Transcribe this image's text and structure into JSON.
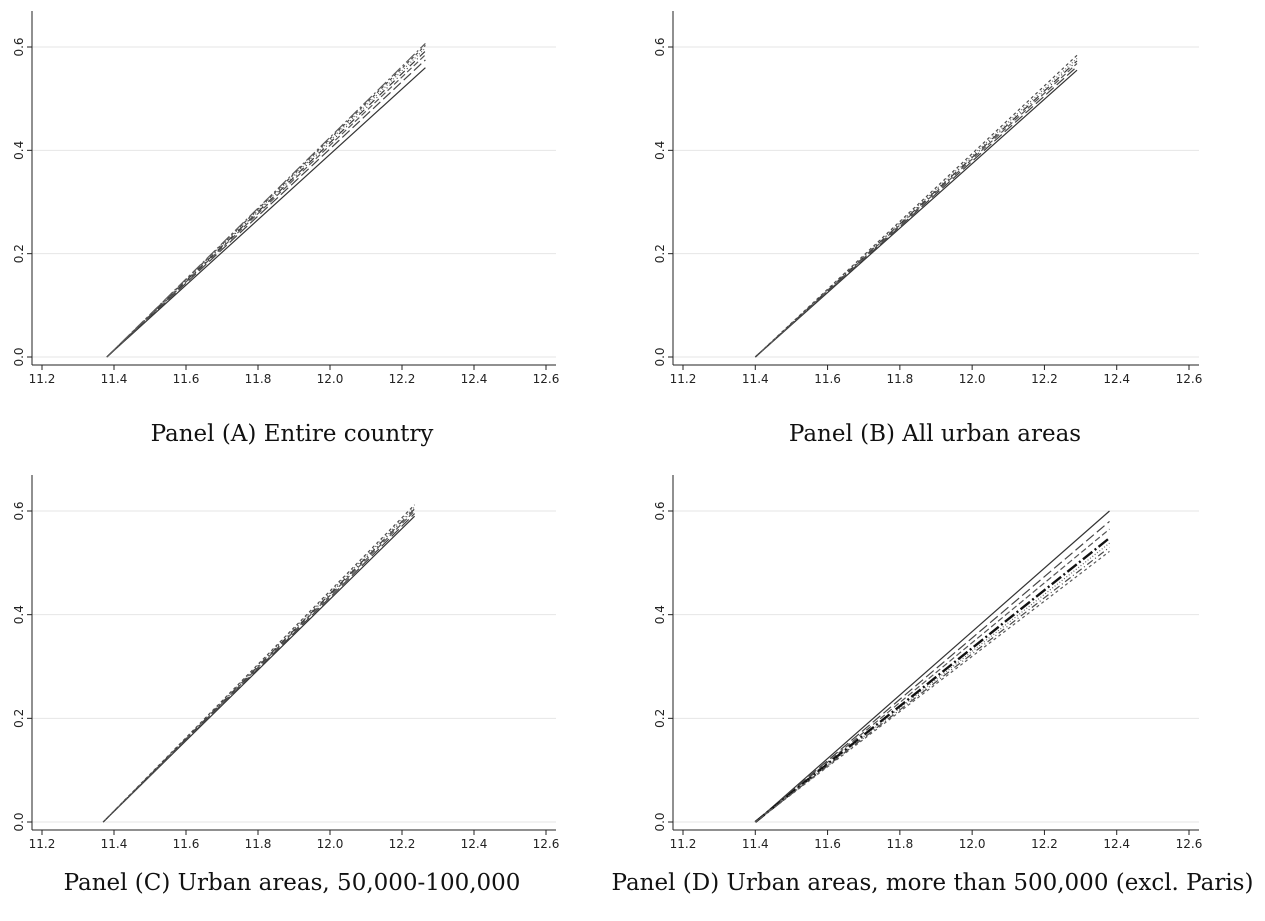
{
  "chart_data": [
    {
      "type": "line",
      "caption": "Panel (A) Entire country",
      "xlim": [
        11.2,
        12.6
      ],
      "ylim": [
        0.0,
        0.6
      ],
      "xticks": [
        "11.2",
        "11.4",
        "11.6",
        "11.8",
        "12.0",
        "12.2",
        "12.4",
        "12.6"
      ],
      "yticks": [
        "0.0",
        "0.2",
        "0.4",
        "0.6"
      ],
      "grid": true,
      "series": [
        {
          "x": [
            11.38,
            12.265
          ],
          "y": [
            0.0,
            0.56
          ],
          "style": "solid"
        },
        {
          "x": [
            11.38,
            12.265
          ],
          "y": [
            0.0,
            0.575
          ],
          "style": "longdash"
        },
        {
          "x": [
            11.38,
            12.265
          ],
          "y": [
            0.0,
            0.585
          ],
          "style": "dash"
        },
        {
          "x": [
            11.38,
            12.265
          ],
          "y": [
            0.0,
            0.592
          ],
          "style": "dashdot"
        },
        {
          "x": [
            11.38,
            12.265
          ],
          "y": [
            0.0,
            0.598
          ],
          "style": "dot"
        },
        {
          "x": [
            11.38,
            12.265
          ],
          "y": [
            0.0,
            0.603
          ],
          "style": "shortdash"
        },
        {
          "x": [
            11.38,
            12.265
          ],
          "y": [
            0.0,
            0.607
          ],
          "style": "longdashdot"
        }
      ]
    },
    {
      "type": "line",
      "caption": "Panel (B) All urban areas",
      "xlim": [
        11.2,
        12.6
      ],
      "ylim": [
        0.0,
        0.6
      ],
      "xticks": [
        "11.2",
        "11.4",
        "11.6",
        "11.8",
        "12.0",
        "12.2",
        "12.4",
        "12.6"
      ],
      "yticks": [
        "0.0",
        "0.2",
        "0.4",
        "0.6"
      ],
      "grid": true,
      "series": [
        {
          "x": [
            11.4,
            12.29
          ],
          "y": [
            0.0,
            0.555
          ],
          "style": "solid"
        },
        {
          "x": [
            11.4,
            12.29
          ],
          "y": [
            0.0,
            0.562
          ],
          "style": "longdash"
        },
        {
          "x": [
            11.4,
            12.29
          ],
          "y": [
            0.0,
            0.568
          ],
          "style": "dash"
        },
        {
          "x": [
            11.4,
            12.29
          ],
          "y": [
            0.0,
            0.573
          ],
          "style": "dashdot"
        },
        {
          "x": [
            11.4,
            12.29
          ],
          "y": [
            0.0,
            0.578
          ],
          "style": "dot"
        },
        {
          "x": [
            11.4,
            12.29
          ],
          "y": [
            0.0,
            0.584
          ],
          "style": "shortdash"
        }
      ]
    },
    {
      "type": "line",
      "caption": "Panel (C) Urban areas, 50,000-100,000",
      "xlim": [
        11.2,
        12.6
      ],
      "ylim": [
        0.0,
        0.6
      ],
      "xticks": [
        "11.2",
        "11.4",
        "11.6",
        "11.8",
        "12.0",
        "12.2",
        "12.4",
        "12.6"
      ],
      "yticks": [
        "0.0",
        "0.2",
        "0.4",
        "0.6"
      ],
      "grid": true,
      "series": [
        {
          "x": [
            11.37,
            12.235
          ],
          "y": [
            0.0,
            0.59
          ],
          "style": "solid"
        },
        {
          "x": [
            11.37,
            12.235
          ],
          "y": [
            0.0,
            0.595
          ],
          "style": "longdash"
        },
        {
          "x": [
            11.37,
            12.235
          ],
          "y": [
            0.0,
            0.6
          ],
          "style": "dash"
        },
        {
          "x": [
            11.37,
            12.235
          ],
          "y": [
            0.0,
            0.604
          ],
          "style": "dashdot"
        },
        {
          "x": [
            11.37,
            12.235
          ],
          "y": [
            0.0,
            0.608
          ],
          "style": "dot"
        },
        {
          "x": [
            11.37,
            12.235
          ],
          "y": [
            0.0,
            0.612
          ],
          "style": "shortdash"
        }
      ]
    },
    {
      "type": "line",
      "caption": "Panel (D) Urban areas, more than 500,000 (excl. Paris)",
      "xlim": [
        11.2,
        12.6
      ],
      "ylim": [
        0.0,
        0.6
      ],
      "xticks": [
        "11.2",
        "11.4",
        "11.6",
        "11.8",
        "12.0",
        "12.2",
        "12.4",
        "12.6"
      ],
      "yticks": [
        "0.0",
        "0.2",
        "0.4",
        "0.6"
      ],
      "grid": true,
      "series": [
        {
          "x": [
            11.4,
            12.38
          ],
          "y": [
            0.0,
            0.6
          ],
          "style": "solid"
        },
        {
          "x": [
            11.4,
            12.38
          ],
          "y": [
            0.0,
            0.58
          ],
          "style": "longdash"
        },
        {
          "x": [
            11.4,
            12.38
          ],
          "y": [
            0.0,
            0.565
          ],
          "style": "dash"
        },
        {
          "x": [
            11.4,
            12.38
          ],
          "y": [
            0.0,
            0.548
          ],
          "style": "longdashdot",
          "bold": true
        },
        {
          "x": [
            11.4,
            12.38
          ],
          "y": [
            0.0,
            0.538
          ],
          "style": "dot"
        },
        {
          "x": [
            11.4,
            12.38
          ],
          "y": [
            0.0,
            0.53
          ],
          "style": "dashdot"
        },
        {
          "x": [
            11.4,
            12.38
          ],
          "y": [
            0.0,
            0.522
          ],
          "style": "shortdash"
        }
      ]
    }
  ]
}
